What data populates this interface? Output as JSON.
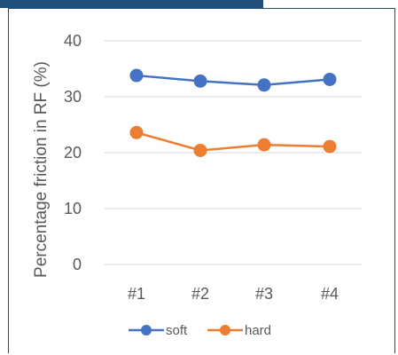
{
  "chart_data": {
    "type": "line",
    "categories": [
      "#1",
      "#2",
      "#3",
      "#4"
    ],
    "series": [
      {
        "name": "soft",
        "values": [
          33.8,
          32.8,
          32.1,
          33.1
        ],
        "color": "#4472c4"
      },
      {
        "name": "hard",
        "values": [
          23.6,
          20.4,
          21.4,
          21.1
        ],
        "color": "#ed7d31"
      }
    ],
    "ylabel": "Percentage friction in RF (%)",
    "xlabel": "",
    "ylim": [
      0,
      40
    ],
    "yticks": [
      "0",
      "10",
      "20",
      "30",
      "40"
    ],
    "grid": true,
    "legend_position": "bottom"
  }
}
